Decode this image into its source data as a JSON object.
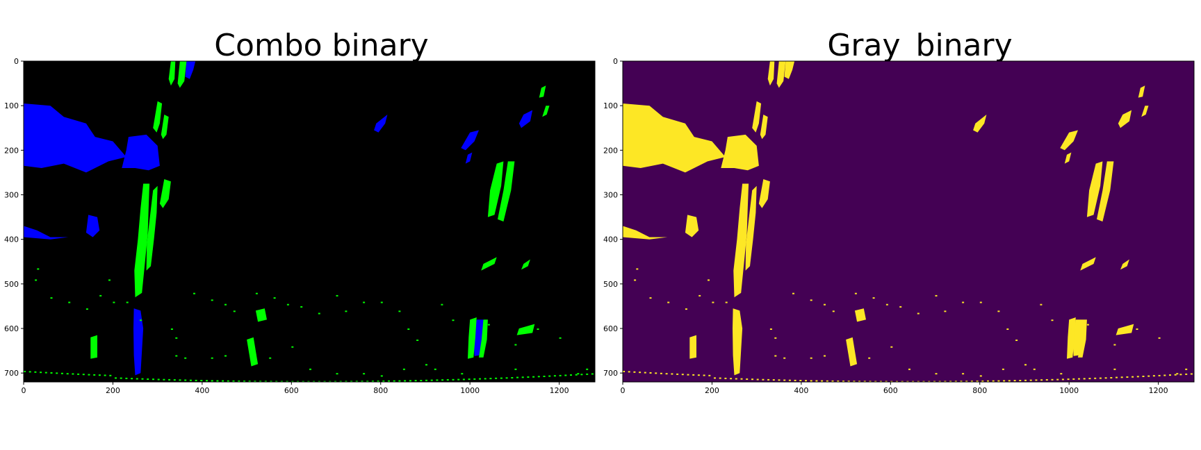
{
  "panels": [
    {
      "title": "Combo binary",
      "background": "#000000",
      "colors": {
        "primary": "#0000ff",
        "secondary": "#00ff00"
      },
      "x_ticks": [
        "0",
        "200",
        "400",
        "600",
        "800",
        "1000",
        "1200"
      ],
      "y_ticks": [
        "0",
        "100",
        "200",
        "300",
        "400",
        "500",
        "600",
        "700"
      ]
    },
    {
      "title": "Gray_binary",
      "background": "#440154",
      "colors": {
        "primary": "#fde725",
        "secondary": "#fde725"
      },
      "x_ticks": [
        "0",
        "200",
        "400",
        "600",
        "800",
        "1000",
        "1200"
      ],
      "y_ticks": [
        "0",
        "100",
        "200",
        "300",
        "400",
        "500",
        "600",
        "700"
      ]
    }
  ],
  "image_extent": {
    "x": [
      0,
      1280
    ],
    "y": [
      0,
      720
    ]
  }
}
